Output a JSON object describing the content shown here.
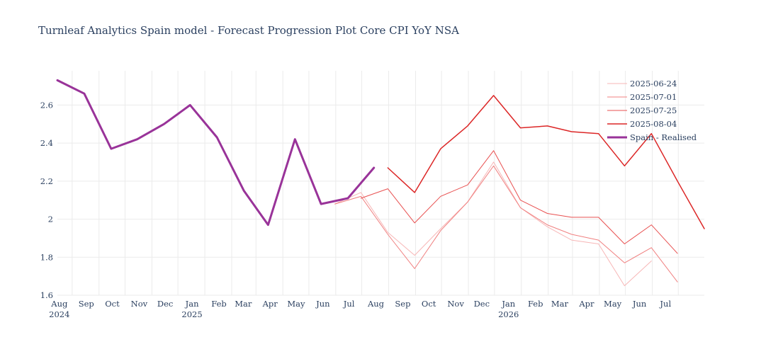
{
  "chart_data": {
    "type": "line",
    "title": "Turnleaf Analytics Spain model - Forecast Progression Plot Core CPI YoY NSA",
    "xlabel": "",
    "ylabel": "",
    "ylim": [
      1.6,
      2.78
    ],
    "xlim": [
      "2024-07-15",
      "2026-07-31"
    ],
    "grid": true,
    "legend_position": "top-right",
    "y_ticks": [
      "1.6",
      "1.8",
      "2",
      "2.2",
      "2.4",
      "2.6"
    ],
    "x_ticks": [
      {
        "date": "2024-08-01",
        "label": "Aug",
        "year": "2024"
      },
      {
        "date": "2024-09-01",
        "label": "Sep",
        "year": ""
      },
      {
        "date": "2024-10-01",
        "label": "Oct",
        "year": ""
      },
      {
        "date": "2024-11-01",
        "label": "Nov",
        "year": ""
      },
      {
        "date": "2024-12-01",
        "label": "Dec",
        "year": ""
      },
      {
        "date": "2025-01-01",
        "label": "Jan",
        "year": "2025"
      },
      {
        "date": "2025-02-01",
        "label": "Feb",
        "year": ""
      },
      {
        "date": "2025-03-01",
        "label": "Mar",
        "year": ""
      },
      {
        "date": "2025-04-01",
        "label": "Apr",
        "year": ""
      },
      {
        "date": "2025-05-01",
        "label": "May",
        "year": ""
      },
      {
        "date": "2025-06-01",
        "label": "Jun",
        "year": ""
      },
      {
        "date": "2025-07-01",
        "label": "Jul",
        "year": ""
      },
      {
        "date": "2025-08-01",
        "label": "Aug",
        "year": ""
      },
      {
        "date": "2025-09-01",
        "label": "Sep",
        "year": ""
      },
      {
        "date": "2025-10-01",
        "label": "Oct",
        "year": ""
      },
      {
        "date": "2025-11-01",
        "label": "Nov",
        "year": ""
      },
      {
        "date": "2025-12-01",
        "label": "Dec",
        "year": ""
      },
      {
        "date": "2026-01-01",
        "label": "Jan",
        "year": "2026"
      },
      {
        "date": "2026-02-01",
        "label": "Feb",
        "year": ""
      },
      {
        "date": "2026-03-01",
        "label": "Mar",
        "year": ""
      },
      {
        "date": "2026-04-01",
        "label": "Apr",
        "year": ""
      },
      {
        "date": "2026-05-01",
        "label": "May",
        "year": ""
      },
      {
        "date": "2026-06-01",
        "label": "Jun",
        "year": ""
      },
      {
        "date": "2026-07-01",
        "label": "Jul",
        "year": ""
      }
    ],
    "series": [
      {
        "name": "2025-06-24",
        "color": "#f7b6b6",
        "width": 1,
        "x": [
          "2025-05-31",
          "2025-06-30",
          "2025-07-31",
          "2025-08-31",
          "2025-09-30",
          "2025-10-31",
          "2025-11-30",
          "2025-12-31",
          "2026-01-31",
          "2026-02-28",
          "2026-03-31",
          "2026-04-30",
          "2026-05-31"
        ],
        "y": [
          2.08,
          2.14,
          1.93,
          1.81,
          1.95,
          2.09,
          2.3,
          2.06,
          1.96,
          1.89,
          1.87,
          1.65,
          1.78
        ]
      },
      {
        "name": "2025-07-01",
        "color": "#f08080",
        "width": 1,
        "x": [
          "2025-05-31",
          "2025-06-30",
          "2025-07-31",
          "2025-08-31",
          "2025-09-30",
          "2025-10-31",
          "2025-11-30",
          "2025-12-31",
          "2026-01-31",
          "2026-02-28",
          "2026-03-31",
          "2026-04-30",
          "2026-05-31",
          "2026-06-30"
        ],
        "y": [
          2.08,
          2.12,
          1.92,
          1.74,
          1.94,
          2.09,
          2.28,
          2.06,
          1.97,
          1.92,
          1.89,
          1.77,
          1.85,
          1.67
        ]
      },
      {
        "name": "2025-07-25",
        "color": "#e85050",
        "width": 1,
        "x": [
          "2025-06-30",
          "2025-07-31",
          "2025-08-31",
          "2025-09-30",
          "2025-10-31",
          "2025-11-30",
          "2025-12-31",
          "2026-01-31",
          "2026-02-28",
          "2026-03-31",
          "2026-04-30",
          "2026-05-31",
          "2026-06-30"
        ],
        "y": [
          2.11,
          2.16,
          1.98,
          2.12,
          2.18,
          2.36,
          2.1,
          2.03,
          2.01,
          2.01,
          1.87,
          1.97,
          1.82
        ]
      },
      {
        "name": "2025-08-04",
        "color": "#dc2626",
        "width": 1.5,
        "x": [
          "2025-07-31",
          "2025-08-31",
          "2025-09-30",
          "2025-10-31",
          "2025-11-30",
          "2025-12-31",
          "2026-01-31",
          "2026-02-28",
          "2026-03-31",
          "2026-04-30",
          "2026-05-31",
          "2026-06-30",
          "2026-07-31"
        ],
        "y": [
          2.27,
          2.14,
          2.37,
          2.49,
          2.65,
          2.48,
          2.49,
          2.46,
          2.45,
          2.28,
          2.45,
          2.2,
          1.95
        ]
      },
      {
        "name": "Spain - Realised",
        "color": "#993399",
        "width": 3,
        "x": [
          "2024-07-15",
          "2024-08-15",
          "2024-09-15",
          "2024-10-15",
          "2024-11-15",
          "2024-12-15",
          "2025-01-15",
          "2025-02-15",
          "2025-03-15",
          "2025-04-15",
          "2025-05-15",
          "2025-06-15",
          "2025-07-15"
        ],
        "y": [
          2.73,
          2.66,
          2.37,
          2.42,
          2.5,
          2.6,
          2.43,
          2.15,
          1.97,
          2.42,
          2.08,
          2.11,
          2.27
        ]
      }
    ]
  }
}
